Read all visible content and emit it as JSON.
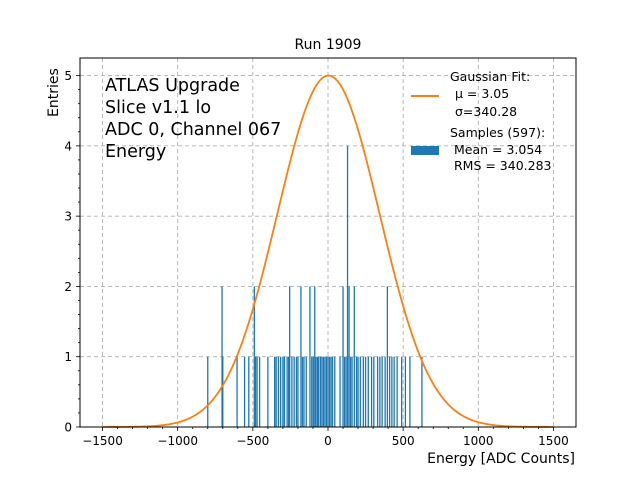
{
  "chart_data": {
    "type": "bar",
    "title": "Run 1909",
    "xlabel": "Energy [ADC Counts]",
    "ylabel": "Entries",
    "xlim": [
      -1650,
      1650
    ],
    "ylim": [
      0,
      5.25
    ],
    "xticks": [
      -1500,
      -1000,
      -500,
      0,
      500,
      1000,
      1500
    ],
    "xtick_labels": [
      "−1500",
      "−1000",
      "−500",
      "0",
      "500",
      "1000",
      "1500"
    ],
    "yticks": [
      0,
      1,
      2,
      3,
      4,
      5
    ],
    "ytick_labels": [
      "0",
      "1",
      "2",
      "3",
      "4",
      "5"
    ],
    "grid": true,
    "annotation": [
      "ATLAS Upgrade",
      "Slice v1.1 lo",
      "ADC 0, Channel 067",
      "Energy"
    ],
    "legend": {
      "placement": "top-right",
      "entries": [
        {
          "kind": "line",
          "color": "#ff7f0e",
          "lines": [
            "Gaussian Fit:",
            "μ = 3.05",
            "σ=340.28"
          ]
        },
        {
          "kind": "patch",
          "color": "#1f77b4",
          "lines": [
            "Samples (597):",
            " Mean = 3.054",
            " RMS = 340.283"
          ]
        }
      ]
    },
    "fit": {
      "name": "Gaussian Fit",
      "mu": 3.05,
      "sigma": 340.28,
      "amplitude": 5.0,
      "x_range": [
        -1500,
        1500
      ],
      "color": "#ff7f0e"
    },
    "histogram": {
      "name": "Samples",
      "count": 597,
      "mean": 3.054,
      "rms": 340.283,
      "color": "#1f77b4",
      "bin_width": 8,
      "bins": [
        {
          "x": -800,
          "y": 1
        },
        {
          "x": -705,
          "y": 2
        },
        {
          "x": -700,
          "y": 1
        },
        {
          "x": -605,
          "y": 1
        },
        {
          "x": -555,
          "y": 1
        },
        {
          "x": -527,
          "y": 1
        },
        {
          "x": -490,
          "y": 2
        },
        {
          "x": -482,
          "y": 1
        },
        {
          "x": -472,
          "y": 1
        },
        {
          "x": -455,
          "y": 1
        },
        {
          "x": -400,
          "y": 1
        },
        {
          "x": -355,
          "y": 1
        },
        {
          "x": -345,
          "y": 1
        },
        {
          "x": -330,
          "y": 1
        },
        {
          "x": -315,
          "y": 1
        },
        {
          "x": -300,
          "y": 1
        },
        {
          "x": -290,
          "y": 1
        },
        {
          "x": -272,
          "y": 1
        },
        {
          "x": -262,
          "y": 1
        },
        {
          "x": -255,
          "y": 2
        },
        {
          "x": -240,
          "y": 1
        },
        {
          "x": -225,
          "y": 1
        },
        {
          "x": -210,
          "y": 1
        },
        {
          "x": -200,
          "y": 1
        },
        {
          "x": -180,
          "y": 2
        },
        {
          "x": -170,
          "y": 1
        },
        {
          "x": -160,
          "y": 1
        },
        {
          "x": -145,
          "y": 1
        },
        {
          "x": -120,
          "y": 2
        },
        {
          "x": -108,
          "y": 1
        },
        {
          "x": -98,
          "y": 1
        },
        {
          "x": -88,
          "y": 2
        },
        {
          "x": -80,
          "y": 1
        },
        {
          "x": -70,
          "y": 1
        },
        {
          "x": -62,
          "y": 1
        },
        {
          "x": -50,
          "y": 1
        },
        {
          "x": -40,
          "y": 1
        },
        {
          "x": -30,
          "y": 1
        },
        {
          "x": -20,
          "y": 1
        },
        {
          "x": -10,
          "y": 1
        },
        {
          "x": 0,
          "y": 1
        },
        {
          "x": 10,
          "y": 1
        },
        {
          "x": 20,
          "y": 1
        },
        {
          "x": 30,
          "y": 1
        },
        {
          "x": 45,
          "y": 1
        },
        {
          "x": 80,
          "y": 1
        },
        {
          "x": 100,
          "y": 2
        },
        {
          "x": 110,
          "y": 1
        },
        {
          "x": 120,
          "y": 1
        },
        {
          "x": 130,
          "y": 4
        },
        {
          "x": 140,
          "y": 2
        },
        {
          "x": 150,
          "y": 1
        },
        {
          "x": 160,
          "y": 1
        },
        {
          "x": 175,
          "y": 2
        },
        {
          "x": 190,
          "y": 1
        },
        {
          "x": 200,
          "y": 1
        },
        {
          "x": 215,
          "y": 1
        },
        {
          "x": 235,
          "y": 1
        },
        {
          "x": 250,
          "y": 1
        },
        {
          "x": 268,
          "y": 1
        },
        {
          "x": 290,
          "y": 1
        },
        {
          "x": 305,
          "y": 1
        },
        {
          "x": 330,
          "y": 1
        },
        {
          "x": 345,
          "y": 1
        },
        {
          "x": 360,
          "y": 1
        },
        {
          "x": 380,
          "y": 1
        },
        {
          "x": 395,
          "y": 2
        },
        {
          "x": 410,
          "y": 1
        },
        {
          "x": 425,
          "y": 1
        },
        {
          "x": 440,
          "y": 1
        },
        {
          "x": 460,
          "y": 1
        },
        {
          "x": 490,
          "y": 1
        },
        {
          "x": 515,
          "y": 1
        },
        {
          "x": 545,
          "y": 1
        },
        {
          "x": 625,
          "y": 1
        }
      ]
    }
  }
}
